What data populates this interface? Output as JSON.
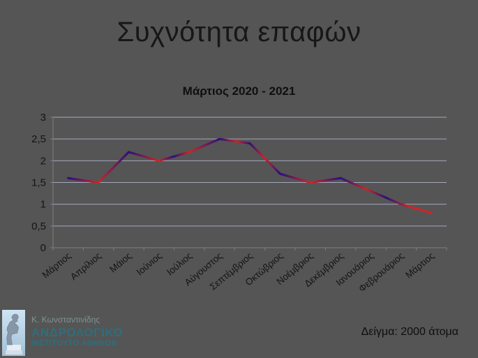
{
  "slide": {
    "title": "Συχνότητα επαφών",
    "footer_note": "Δείγμα: 2000 άτομα"
  },
  "logo": {
    "person": "Κ. Κωνσταντινίδης",
    "org_line1": "ΑΝΔΡΟΛΟΓΙΚΟ",
    "org_line2": "ΙΝΣΤΙΤΟΥΤΟ ΑΘΗΝΩΝ",
    "brand_color": "#2d6f7e"
  },
  "chart_data": {
    "type": "line",
    "title": "Μάρτιος 2020 - 2021",
    "categories": [
      "Μάρτιος",
      "Απρίλιος",
      "Μάιος",
      "Ιούνιος",
      "Ιούλιος",
      "Αύγουστος",
      "Σεπτέμβριος",
      "Οκτώβριος",
      "Νοέμβριος",
      "Δεκέμβριος",
      "Ιανουάριος",
      "Φεβρουάριος",
      "Μάρτιος"
    ],
    "values": [
      1.6,
      1.5,
      2.2,
      2.0,
      2.2,
      2.5,
      2.4,
      1.7,
      1.5,
      1.6,
      1.3,
      1.0,
      0.8
    ],
    "xlabel": "",
    "ylabel": "",
    "ylim": [
      0,
      3
    ],
    "ytick_step": 0.5,
    "ytick_labels": [
      "0",
      "0,5",
      "1",
      "1,5",
      "2",
      "2,5",
      "3"
    ],
    "grid": true,
    "legend": "none",
    "colors": {
      "grid": "#a3a7bd",
      "axis": "#7f7f7f",
      "text": "#141414",
      "line_red": "#cf2525",
      "line_navy": "#2a117e"
    },
    "line_gradient": [
      {
        "offset": 0.0,
        "color": "#2a117e"
      },
      {
        "offset": 0.083,
        "color": "#cf2525"
      },
      {
        "offset": 0.167,
        "color": "#2a117e"
      },
      {
        "offset": 0.25,
        "color": "#cf2525"
      },
      {
        "offset": 0.29,
        "color": "#2a117e"
      },
      {
        "offset": 0.333,
        "color": "#cf2525"
      },
      {
        "offset": 0.417,
        "color": "#2a117e"
      },
      {
        "offset": 0.465,
        "color": "#cf2525"
      },
      {
        "offset": 0.5,
        "color": "#2a117e"
      },
      {
        "offset": 0.54,
        "color": "#cf2525"
      },
      {
        "offset": 0.583,
        "color": "#2a117e"
      },
      {
        "offset": 0.667,
        "color": "#cf2525"
      },
      {
        "offset": 0.75,
        "color": "#2a117e"
      },
      {
        "offset": 0.82,
        "color": "#cf2525"
      },
      {
        "offset": 0.875,
        "color": "#2a117e"
      },
      {
        "offset": 0.94,
        "color": "#cf2525"
      },
      {
        "offset": 1.0,
        "color": "#cf2525"
      }
    ]
  }
}
